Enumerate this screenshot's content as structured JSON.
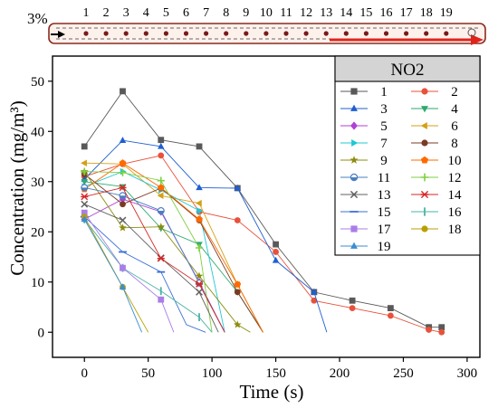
{
  "schematic": {
    "inlet_label": "3%",
    "station_labels": [
      "1",
      "2",
      "3",
      "4",
      "5",
      "6",
      "7",
      "8",
      "9",
      "10",
      "11",
      "12",
      "13",
      "14",
      "15",
      "16",
      "17",
      "18",
      "19"
    ]
  },
  "colors": {
    "axis": "#000000",
    "pipe_outline": "#8b2a1f",
    "pipe_fill": "#fdf1ec",
    "pipe_arrow": "#e0241b",
    "station_dot": "#7a1a1a",
    "legend_header_bg": "#d4d4d4"
  },
  "chart_data": {
    "type": "line",
    "title": "",
    "xlabel": "Time (s)",
    "ylabel": "Concentration (mg/m³)",
    "xlim": [
      -25,
      310
    ],
    "ylim": [
      -5,
      55
    ],
    "xticks": [
      0,
      50,
      100,
      150,
      200,
      250,
      300
    ],
    "yticks": [
      0,
      10,
      20,
      30,
      40,
      50
    ],
    "grid": false,
    "legend": {
      "title": "NO2",
      "placement": "top-right",
      "columns": 2
    },
    "series": [
      {
        "name": "1",
        "color": "#595959",
        "marker": "square",
        "x": [
          0,
          30,
          60,
          90,
          120,
          150,
          180,
          210,
          240,
          270,
          280
        ],
        "y": [
          37,
          48,
          38.3,
          37,
          28.7,
          17.5,
          8,
          6.3,
          4.8,
          1,
          1
        ]
      },
      {
        "name": "2",
        "color": "#e8523a",
        "marker": "circle",
        "x": [
          0,
          30,
          60,
          90,
          120,
          150,
          180,
          210,
          240,
          270,
          280
        ],
        "y": [
          31,
          33.5,
          35.2,
          24,
          22.3,
          16,
          6.3,
          4.8,
          3.3,
          0.5,
          0
        ]
      },
      {
        "name": "3",
        "color": "#1f5fd1",
        "marker": "triangle-up",
        "x": [
          0,
          30,
          60,
          90,
          120,
          150,
          180,
          190
        ],
        "y": [
          30.5,
          38.2,
          37,
          28.8,
          28.7,
          14.3,
          8,
          0
        ]
      },
      {
        "name": "4",
        "color": "#2eaa6e",
        "marker": "triangle-down",
        "x": [
          0,
          30,
          60,
          90,
          120,
          140
        ],
        "y": [
          30,
          29,
          20.7,
          17.5,
          8,
          0
        ]
      },
      {
        "name": "5",
        "color": "#b040d6",
        "marker": "diamond",
        "x": [
          0,
          30,
          60,
          90,
          110
        ],
        "y": [
          22.5,
          26.5,
          24,
          10,
          0
        ]
      },
      {
        "name": "6",
        "color": "#d4a017",
        "marker": "triangle-left",
        "x": [
          0,
          30,
          60,
          90,
          120,
          140
        ],
        "y": [
          33.7,
          33.5,
          27.2,
          25.7,
          9.5,
          0
        ]
      },
      {
        "name": "7",
        "color": "#1fc7d4",
        "marker": "triangle-right",
        "x": [
          0,
          30,
          60,
          90,
          110
        ],
        "y": [
          29,
          32,
          28.3,
          24.2,
          0
        ]
      },
      {
        "name": "8",
        "color": "#7a3b22",
        "marker": "circle",
        "x": [
          0,
          30,
          60,
          90,
          120,
          140
        ],
        "y": [
          31.5,
          25.5,
          28.7,
          22.3,
          8,
          0
        ]
      },
      {
        "name": "9",
        "color": "#8c8c0f",
        "marker": "star",
        "x": [
          0,
          30,
          60,
          90,
          120,
          130
        ],
        "y": [
          32,
          20.8,
          21,
          11.2,
          1.5,
          0
        ]
      },
      {
        "name": "10",
        "color": "#ff6a00",
        "marker": "pentagon",
        "x": [
          0,
          30,
          60,
          90,
          120,
          140
        ],
        "y": [
          28.5,
          33.7,
          28.8,
          22.5,
          9.5,
          0
        ]
      },
      {
        "name": "11",
        "color": "#4a7fc1",
        "marker": "half-circle",
        "x": [
          0,
          30,
          60,
          90,
          110
        ],
        "y": [
          28.8,
          27.2,
          24.2,
          9.8,
          0
        ]
      },
      {
        "name": "12",
        "color": "#7fcf40",
        "marker": "plus",
        "x": [
          0,
          30,
          60,
          90,
          100
        ],
        "y": [
          32,
          31.8,
          30.2,
          16.8,
          0
        ]
      },
      {
        "name": "13",
        "color": "#606060",
        "marker": "x",
        "x": [
          0,
          30,
          60,
          90,
          105
        ],
        "y": [
          25.5,
          22.3,
          14.8,
          8,
          0
        ]
      },
      {
        "name": "14",
        "color": "#d62728",
        "marker": "asterisk",
        "x": [
          0,
          30,
          60,
          90,
          110
        ],
        "y": [
          27,
          28.8,
          14.7,
          9.6,
          0
        ]
      },
      {
        "name": "15",
        "color": "#3b6fd6",
        "marker": "hline",
        "x": [
          0,
          30,
          60,
          80,
          95
        ],
        "y": [
          23,
          16,
          12,
          1.5,
          0
        ]
      },
      {
        "name": "16",
        "color": "#4ab3a8",
        "marker": "vline",
        "x": [
          0,
          30,
          60,
          90,
          100
        ],
        "y": [
          22.5,
          12.8,
          8.2,
          3,
          0
        ]
      },
      {
        "name": "17",
        "color": "#a97ee8",
        "marker": "square",
        "x": [
          0,
          30,
          60,
          70
        ],
        "y": [
          23.8,
          12.8,
          6.5,
          0
        ]
      },
      {
        "name": "18",
        "color": "#b8a000",
        "marker": "circle",
        "x": [
          0,
          30,
          50
        ],
        "y": [
          23,
          9,
          0
        ]
      },
      {
        "name": "19",
        "color": "#3a8fd0",
        "marker": "triangle-up",
        "x": [
          0,
          30,
          45
        ],
        "y": [
          22.5,
          9,
          0
        ]
      }
    ]
  }
}
